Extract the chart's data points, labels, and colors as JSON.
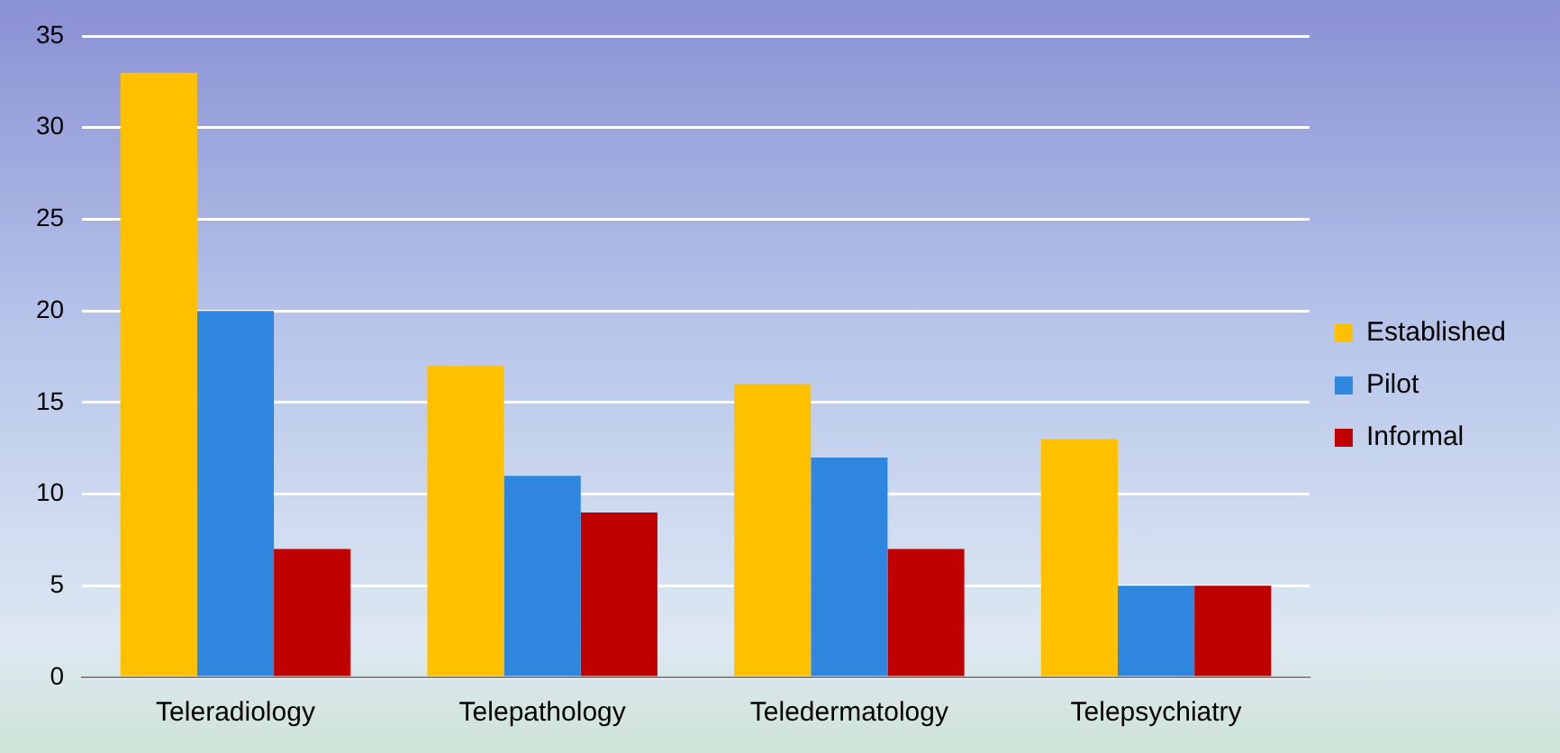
{
  "chart_data": {
    "type": "bar",
    "categories": [
      "Teleradiology",
      "Telepathology",
      "Teledermatology",
      "Telepsychiatry"
    ],
    "series": [
      {
        "name": "Established",
        "color": "#ffc000",
        "values": [
          33,
          17,
          16,
          13
        ]
      },
      {
        "name": "Pilot",
        "color": "#2e86de",
        "values": [
          20,
          11,
          12,
          5
        ]
      },
      {
        "name": "Informal",
        "color": "#c00000",
        "values": [
          7,
          9,
          7,
          5
        ]
      }
    ],
    "ylim": [
      0,
      35
    ],
    "yticks": [
      0,
      5,
      10,
      15,
      20,
      25,
      30,
      35
    ],
    "grid": "y",
    "legend": "right"
  }
}
